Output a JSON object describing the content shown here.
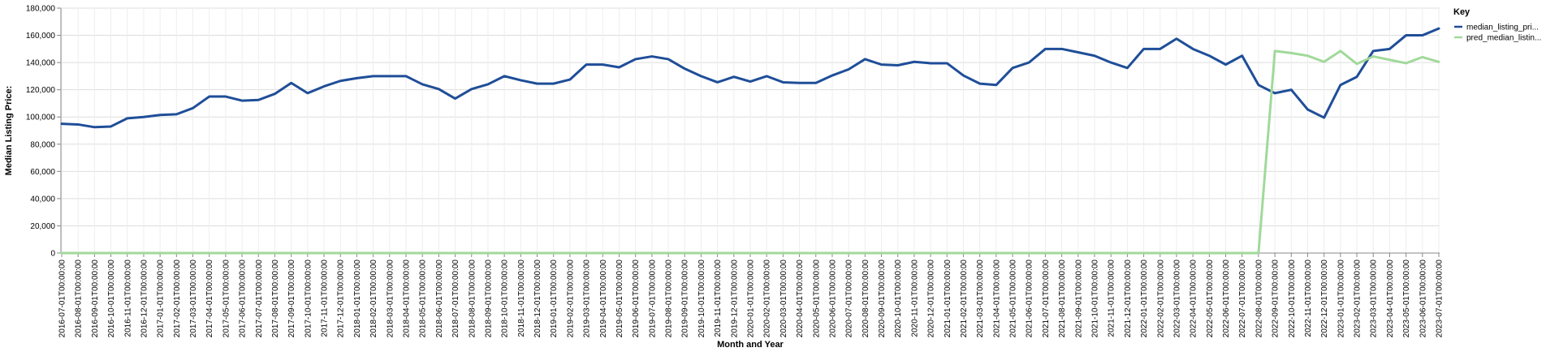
{
  "chart_data": {
    "type": "line",
    "title": "",
    "xlabel": "Month and Year",
    "ylabel": "Median Listing Price:",
    "ylim": [
      0,
      180000
    ],
    "y_ticks": [
      "0",
      "20,000",
      "40,000",
      "60,000",
      "80,000",
      "100,000",
      "120,000",
      "140,000",
      "160,000",
      "180,000"
    ],
    "y_tick_values": [
      0,
      20000,
      40000,
      60000,
      80000,
      100000,
      120000,
      140000,
      160000,
      180000
    ],
    "grid": true,
    "legend_position": "right",
    "legend_title": "Key",
    "x": [
      "2016-07-01T00:00:00",
      "2016-08-01T00:00:00",
      "2016-09-01T00:00:00",
      "2016-10-01T00:00:00",
      "2016-11-01T00:00:00",
      "2016-12-01T00:00:00",
      "2017-01-01T00:00:00",
      "2017-02-01T00:00:00",
      "2017-03-01T00:00:00",
      "2017-04-01T00:00:00",
      "2017-05-01T00:00:00",
      "2017-06-01T00:00:00",
      "2017-07-01T00:00:00",
      "2017-08-01T00:00:00",
      "2017-09-01T00:00:00",
      "2017-10-01T00:00:00",
      "2017-11-01T00:00:00",
      "2017-12-01T00:00:00",
      "2018-01-01T00:00:00",
      "2018-02-01T00:00:00",
      "2018-03-01T00:00:00",
      "2018-04-01T00:00:00",
      "2018-05-01T00:00:00",
      "2018-06-01T00:00:00",
      "2018-07-01T00:00:00",
      "2018-08-01T00:00:00",
      "2018-09-01T00:00:00",
      "2018-10-01T00:00:00",
      "2018-11-01T00:00:00",
      "2018-12-01T00:00:00",
      "2019-01-01T00:00:00",
      "2019-02-01T00:00:00",
      "2019-03-01T00:00:00",
      "2019-04-01T00:00:00",
      "2019-05-01T00:00:00",
      "2019-06-01T00:00:00",
      "2019-07-01T00:00:00",
      "2019-08-01T00:00:00",
      "2019-09-01T00:00:00",
      "2019-10-01T00:00:00",
      "2019-11-01T00:00:00",
      "2019-12-01T00:00:00",
      "2020-01-01T00:00:00",
      "2020-02-01T00:00:00",
      "2020-03-01T00:00:00",
      "2020-04-01T00:00:00",
      "2020-05-01T00:00:00",
      "2020-06-01T00:00:00",
      "2020-07-01T00:00:00",
      "2020-08-01T00:00:00",
      "2020-09-01T00:00:00",
      "2020-10-01T00:00:00",
      "2020-11-01T00:00:00",
      "2020-12-01T00:00:00",
      "2021-01-01T00:00:00",
      "2021-02-01T00:00:00",
      "2021-03-01T00:00:00",
      "2021-04-01T00:00:00",
      "2021-05-01T00:00:00",
      "2021-06-01T00:00:00",
      "2021-07-01T00:00:00",
      "2021-08-01T00:00:00",
      "2021-09-01T00:00:00",
      "2021-10-01T00:00:00",
      "2021-11-01T00:00:00",
      "2021-12-01T00:00:00",
      "2022-01-01T00:00:00",
      "2022-02-01T00:00:00",
      "2022-03-01T00:00:00",
      "2022-04-01T00:00:00",
      "2022-05-01T00:00:00",
      "2022-06-01T00:00:00",
      "2022-07-01T00:00:00",
      "2022-08-01T00:00:00",
      "2022-09-01T00:00:00",
      "2022-10-01T00:00:00",
      "2022-11-01T00:00:00",
      "2022-12-01T00:00:00",
      "2023-01-01T00:00:00",
      "2023-02-01T00:00:00",
      "2023-03-01T00:00:00",
      "2023-04-01T00:00:00",
      "2023-05-01T00:00:00",
      "2023-06-01T00:00:00",
      "2023-07-01T00:00:00"
    ],
    "series": [
      {
        "name": "median_listing_pri...",
        "color": "#1f4e98",
        "values": [
          95000,
          94500,
          92500,
          93000,
          99000,
          100000,
          101500,
          102000,
          106500,
          115000,
          115000,
          112000,
          112500,
          117000,
          125000,
          117500,
          122500,
          126500,
          128500,
          130000,
          130000,
          130000,
          124000,
          120500,
          113500,
          120500,
          124000,
          130000,
          127000,
          124500,
          124500,
          127500,
          138500,
          138500,
          136500,
          142500,
          144500,
          142500,
          135500,
          130000,
          125500,
          129500,
          126000,
          130000,
          125500,
          125000,
          125000,
          130500,
          135000,
          142500,
          138500,
          138000,
          140500,
          139500,
          139500,
          130500,
          124500,
          123500,
          136000,
          140000,
          150000,
          150000,
          147500,
          145000,
          140000,
          136000,
          150000,
          150000,
          157500,
          150000,
          145000,
          138500,
          145000,
          123500,
          117500,
          120000,
          105500,
          99500,
          123500,
          129500,
          148500,
          150000,
          160000,
          160000,
          165000
        ]
      },
      {
        "name": "pred_median_listin...",
        "color": "#a1d99b",
        "values": [
          0,
          0,
          0,
          0,
          0,
          0,
          0,
          0,
          0,
          0,
          0,
          0,
          0,
          0,
          0,
          0,
          0,
          0,
          0,
          0,
          0,
          0,
          0,
          0,
          0,
          0,
          0,
          0,
          0,
          0,
          0,
          0,
          0,
          0,
          0,
          0,
          0,
          0,
          0,
          0,
          0,
          0,
          0,
          0,
          0,
          0,
          0,
          0,
          0,
          0,
          0,
          0,
          0,
          0,
          0,
          0,
          0,
          0,
          0,
          0,
          0,
          0,
          0,
          0,
          0,
          0,
          0,
          0,
          0,
          0,
          0,
          0,
          0,
          0,
          148500,
          147000,
          145000,
          140500,
          148500,
          139000,
          144500,
          142000,
          139500,
          144000,
          140500
        ]
      }
    ]
  }
}
